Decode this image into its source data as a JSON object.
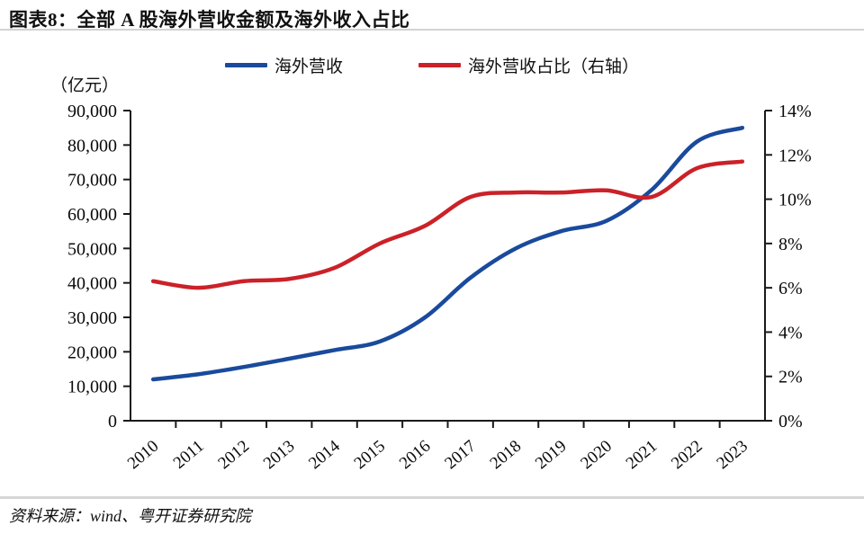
{
  "header": {
    "title": "图表8：全部 A 股海外营收金额及海外收入占比"
  },
  "legend": {
    "items": [
      {
        "label": "海外营收",
        "color": "#1A4A9C"
      },
      {
        "label": "海外营收占比（右轴）",
        "color": "#CB2128"
      }
    ]
  },
  "footer": {
    "source": "资料来源：wind、粤开证券研究院"
  },
  "colors": {
    "axis": "#1a1a1a",
    "blue_series": "#1A4A9C",
    "red_series": "#CB2128"
  },
  "chart_data": {
    "type": "line",
    "title": "全部A股海外营收金额及海外收入占比",
    "unit_label": "（亿元）",
    "x": [
      "2010",
      "2011",
      "2012",
      "2013",
      "2014",
      "2015",
      "2016",
      "2017",
      "2018",
      "2019",
      "2020",
      "2021",
      "2022",
      "2023"
    ],
    "series": [
      {
        "name": "海外营收",
        "axis": "left",
        "color": "#1A4A9C",
        "values": [
          12000,
          13500,
          15600,
          18000,
          20500,
          23000,
          30000,
          41500,
          50000,
          55000,
          58000,
          67000,
          81000,
          85000
        ]
      },
      {
        "name": "海外营收占比（右轴）",
        "axis": "right",
        "color": "#CB2128",
        "values": [
          6.3,
          6.0,
          6.3,
          6.4,
          6.9,
          8.0,
          8.8,
          10.1,
          10.3,
          10.3,
          10.4,
          10.1,
          11.4,
          11.7
        ]
      }
    ],
    "left_axis": {
      "min": 0,
      "max": 90000,
      "step": 10000,
      "tick_labels": [
        "0",
        "10,000",
        "20,000",
        "30,000",
        "40,000",
        "50,000",
        "60,000",
        "70,000",
        "80,000",
        "90,000"
      ]
    },
    "right_axis": {
      "min": 0,
      "max": 14,
      "step": 2,
      "tick_labels": [
        "0%",
        "2%",
        "4%",
        "6%",
        "8%",
        "10%",
        "12%",
        "14%"
      ]
    },
    "legend_position": "top",
    "grid": false
  }
}
